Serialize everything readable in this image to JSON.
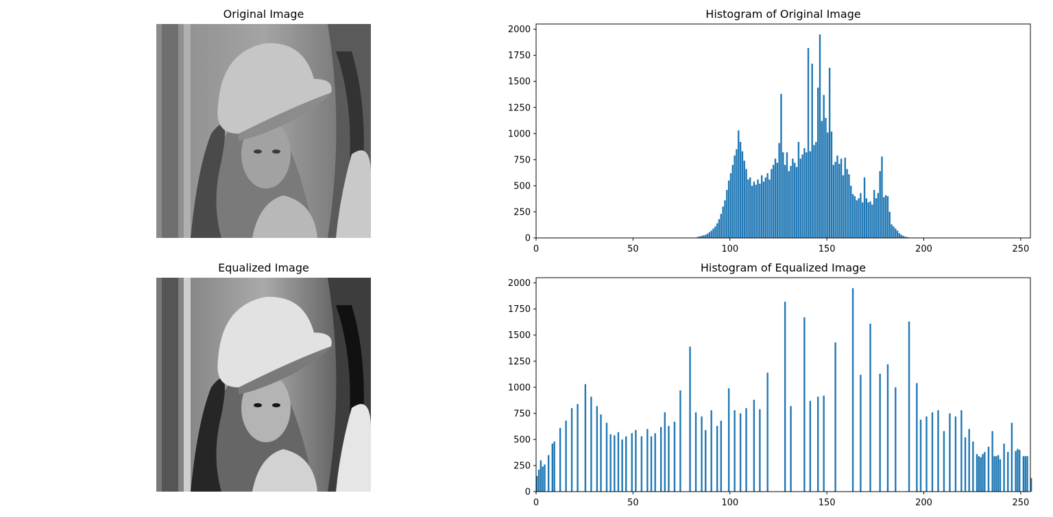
{
  "panels": {
    "original_image_title": "Original Image",
    "equalized_image_title": "Equalized Image"
  },
  "chart_data": [
    {
      "type": "bar",
      "title": "Histogram of Original Image",
      "xlabel": "",
      "ylabel": "",
      "xlim": [
        0,
        255
      ],
      "ylim": [
        0,
        2050
      ],
      "grid": false,
      "color": "#1f77b4",
      "xticks": [
        0,
        50,
        100,
        150,
        200,
        250
      ],
      "yticks": [
        0,
        250,
        500,
        750,
        1000,
        1250,
        1500,
        1750,
        2000
      ],
      "bins": [
        {
          "x": 83,
          "y": 10
        },
        {
          "x": 84,
          "y": 15
        },
        {
          "x": 85,
          "y": 20
        },
        {
          "x": 86,
          "y": 25
        },
        {
          "x": 87,
          "y": 30
        },
        {
          "x": 88,
          "y": 40
        },
        {
          "x": 89,
          "y": 55
        },
        {
          "x": 90,
          "y": 70
        },
        {
          "x": 91,
          "y": 90
        },
        {
          "x": 92,
          "y": 110
        },
        {
          "x": 93,
          "y": 140
        },
        {
          "x": 94,
          "y": 180
        },
        {
          "x": 95,
          "y": 230
        },
        {
          "x": 96,
          "y": 300
        },
        {
          "x": 97,
          "y": 360
        },
        {
          "x": 98,
          "y": 460
        },
        {
          "x": 99,
          "y": 550
        },
        {
          "x": 100,
          "y": 620
        },
        {
          "x": 101,
          "y": 700
        },
        {
          "x": 102,
          "y": 790
        },
        {
          "x": 103,
          "y": 850
        },
        {
          "x": 104,
          "y": 1030
        },
        {
          "x": 105,
          "y": 920
        },
        {
          "x": 106,
          "y": 830
        },
        {
          "x": 107,
          "y": 740
        },
        {
          "x": 108,
          "y": 660
        },
        {
          "x": 109,
          "y": 560
        },
        {
          "x": 110,
          "y": 580
        },
        {
          "x": 111,
          "y": 500
        },
        {
          "x": 112,
          "y": 540
        },
        {
          "x": 113,
          "y": 510
        },
        {
          "x": 114,
          "y": 560
        },
        {
          "x": 115,
          "y": 520
        },
        {
          "x": 116,
          "y": 600
        },
        {
          "x": 117,
          "y": 540
        },
        {
          "x": 118,
          "y": 580
        },
        {
          "x": 119,
          "y": 620
        },
        {
          "x": 120,
          "y": 560
        },
        {
          "x": 121,
          "y": 660
        },
        {
          "x": 122,
          "y": 700
        },
        {
          "x": 123,
          "y": 760
        },
        {
          "x": 124,
          "y": 720
        },
        {
          "x": 125,
          "y": 910
        },
        {
          "x": 126,
          "y": 1380
        },
        {
          "x": 127,
          "y": 820
        },
        {
          "x": 128,
          "y": 700
        },
        {
          "x": 129,
          "y": 820
        },
        {
          "x": 130,
          "y": 640
        },
        {
          "x": 131,
          "y": 690
        },
        {
          "x": 132,
          "y": 760
        },
        {
          "x": 133,
          "y": 720
        },
        {
          "x": 134,
          "y": 680
        },
        {
          "x": 135,
          "y": 920
        },
        {
          "x": 136,
          "y": 760
        },
        {
          "x": 137,
          "y": 800
        },
        {
          "x": 138,
          "y": 860
        },
        {
          "x": 139,
          "y": 820
        },
        {
          "x": 140,
          "y": 1820
        },
        {
          "x": 141,
          "y": 830
        },
        {
          "x": 142,
          "y": 1670
        },
        {
          "x": 143,
          "y": 890
        },
        {
          "x": 144,
          "y": 920
        },
        {
          "x": 145,
          "y": 1440
        },
        {
          "x": 146,
          "y": 1950
        },
        {
          "x": 147,
          "y": 1120
        },
        {
          "x": 148,
          "y": 1370
        },
        {
          "x": 149,
          "y": 1150
        },
        {
          "x": 150,
          "y": 1010
        },
        {
          "x": 151,
          "y": 1630
        },
        {
          "x": 152,
          "y": 1020
        },
        {
          "x": 153,
          "y": 700
        },
        {
          "x": 154,
          "y": 730
        },
        {
          "x": 155,
          "y": 790
        },
        {
          "x": 156,
          "y": 710
        },
        {
          "x": 157,
          "y": 760
        },
        {
          "x": 158,
          "y": 600
        },
        {
          "x": 159,
          "y": 770
        },
        {
          "x": 160,
          "y": 660
        },
        {
          "x": 161,
          "y": 610
        },
        {
          "x": 162,
          "y": 500
        },
        {
          "x": 163,
          "y": 420
        },
        {
          "x": 164,
          "y": 400
        },
        {
          "x": 165,
          "y": 360
        },
        {
          "x": 166,
          "y": 380
        },
        {
          "x": 167,
          "y": 430
        },
        {
          "x": 168,
          "y": 340
        },
        {
          "x": 169,
          "y": 580
        },
        {
          "x": 170,
          "y": 380
        },
        {
          "x": 171,
          "y": 340
        },
        {
          "x": 172,
          "y": 350
        },
        {
          "x": 173,
          "y": 320
        },
        {
          "x": 174,
          "y": 460
        },
        {
          "x": 175,
          "y": 380
        },
        {
          "x": 176,
          "y": 430
        },
        {
          "x": 177,
          "y": 640
        },
        {
          "x": 178,
          "y": 780
        },
        {
          "x": 179,
          "y": 390
        },
        {
          "x": 180,
          "y": 410
        },
        {
          "x": 181,
          "y": 400
        },
        {
          "x": 182,
          "y": 250
        },
        {
          "x": 183,
          "y": 130
        },
        {
          "x": 184,
          "y": 110
        },
        {
          "x": 185,
          "y": 90
        },
        {
          "x": 186,
          "y": 70
        },
        {
          "x": 187,
          "y": 45
        },
        {
          "x": 188,
          "y": 30
        },
        {
          "x": 189,
          "y": 20
        },
        {
          "x": 190,
          "y": 12
        },
        {
          "x": 191,
          "y": 8
        },
        {
          "x": 192,
          "y": 5
        },
        {
          "x": 193,
          "y": 3
        }
      ]
    },
    {
      "type": "bar",
      "title": "Histogram of Equalized Image",
      "xlabel": "",
      "ylabel": "",
      "xlim": [
        0,
        255
      ],
      "ylim": [
        0,
        2050
      ],
      "grid": false,
      "color": "#1f77b4",
      "xticks": [
        0,
        50,
        100,
        150,
        200,
        250
      ],
      "yticks": [
        0,
        250,
        500,
        750,
        1000,
        1250,
        1500,
        1750,
        2000
      ],
      "bins": [
        {
          "x": 0,
          "y": 150
        },
        {
          "x": 1,
          "y": 210
        },
        {
          "x": 2,
          "y": 300
        },
        {
          "x": 3,
          "y": 240
        },
        {
          "x": 4,
          "y": 260
        },
        {
          "x": 6,
          "y": 350
        },
        {
          "x": 8,
          "y": 460
        },
        {
          "x": 9,
          "y": 480
        },
        {
          "x": 12,
          "y": 610
        },
        {
          "x": 15,
          "y": 680
        },
        {
          "x": 18,
          "y": 800
        },
        {
          "x": 21,
          "y": 840
        },
        {
          "x": 25,
          "y": 1030
        },
        {
          "x": 28,
          "y": 910
        },
        {
          "x": 31,
          "y": 820
        },
        {
          "x": 33,
          "y": 740
        },
        {
          "x": 36,
          "y": 660
        },
        {
          "x": 38,
          "y": 550
        },
        {
          "x": 40,
          "y": 540
        },
        {
          "x": 42,
          "y": 570
        },
        {
          "x": 44,
          "y": 500
        },
        {
          "x": 46,
          "y": 530
        },
        {
          "x": 49,
          "y": 560
        },
        {
          "x": 51,
          "y": 590
        },
        {
          "x": 54,
          "y": 530
        },
        {
          "x": 57,
          "y": 600
        },
        {
          "x": 59,
          "y": 530
        },
        {
          "x": 61,
          "y": 560
        },
        {
          "x": 64,
          "y": 620
        },
        {
          "x": 66,
          "y": 760
        },
        {
          "x": 68,
          "y": 630
        },
        {
          "x": 71,
          "y": 670
        },
        {
          "x": 74,
          "y": 970
        },
        {
          "x": 79,
          "y": 1390
        },
        {
          "x": 82,
          "y": 760
        },
        {
          "x": 85,
          "y": 720
        },
        {
          "x": 87,
          "y": 590
        },
        {
          "x": 90,
          "y": 780
        },
        {
          "x": 93,
          "y": 630
        },
        {
          "x": 95,
          "y": 680
        },
        {
          "x": 99,
          "y": 990
        },
        {
          "x": 102,
          "y": 780
        },
        {
          "x": 105,
          "y": 750
        },
        {
          "x": 108,
          "y": 800
        },
        {
          "x": 112,
          "y": 880
        },
        {
          "x": 115,
          "y": 790
        },
        {
          "x": 119,
          "y": 1140
        },
        {
          "x": 128,
          "y": 1820
        },
        {
          "x": 131,
          "y": 820
        },
        {
          "x": 138,
          "y": 1670
        },
        {
          "x": 141,
          "y": 870
        },
        {
          "x": 145,
          "y": 910
        },
        {
          "x": 148,
          "y": 920
        },
        {
          "x": 154,
          "y": 1430
        },
        {
          "x": 163,
          "y": 1950
        },
        {
          "x": 167,
          "y": 1120
        },
        {
          "x": 172,
          "y": 1610
        },
        {
          "x": 177,
          "y": 1130
        },
        {
          "x": 181,
          "y": 1220
        },
        {
          "x": 185,
          "y": 1000
        },
        {
          "x": 192,
          "y": 1630
        },
        {
          "x": 196,
          "y": 1040
        },
        {
          "x": 198,
          "y": 690
        },
        {
          "x": 201,
          "y": 720
        },
        {
          "x": 204,
          "y": 760
        },
        {
          "x": 207,
          "y": 780
        },
        {
          "x": 210,
          "y": 580
        },
        {
          "x": 213,
          "y": 750
        },
        {
          "x": 216,
          "y": 720
        },
        {
          "x": 219,
          "y": 780
        },
        {
          "x": 221,
          "y": 520
        },
        {
          "x": 223,
          "y": 600
        },
        {
          "x": 225,
          "y": 480
        },
        {
          "x": 227,
          "y": 360
        },
        {
          "x": 228,
          "y": 340
        },
        {
          "x": 229,
          "y": 330
        },
        {
          "x": 230,
          "y": 360
        },
        {
          "x": 231,
          "y": 380
        },
        {
          "x": 233,
          "y": 430
        },
        {
          "x": 235,
          "y": 580
        },
        {
          "x": 236,
          "y": 340
        },
        {
          "x": 237,
          "y": 340
        },
        {
          "x": 238,
          "y": 350
        },
        {
          "x": 239,
          "y": 310
        },
        {
          "x": 241,
          "y": 460
        },
        {
          "x": 243,
          "y": 380
        },
        {
          "x": 245,
          "y": 660
        },
        {
          "x": 247,
          "y": 390
        },
        {
          "x": 248,
          "y": 410
        },
        {
          "x": 249,
          "y": 400
        },
        {
          "x": 251,
          "y": 340
        },
        {
          "x": 252,
          "y": 340
        },
        {
          "x": 253,
          "y": 340
        },
        {
          "x": 255,
          "y": 130
        }
      ]
    }
  ]
}
